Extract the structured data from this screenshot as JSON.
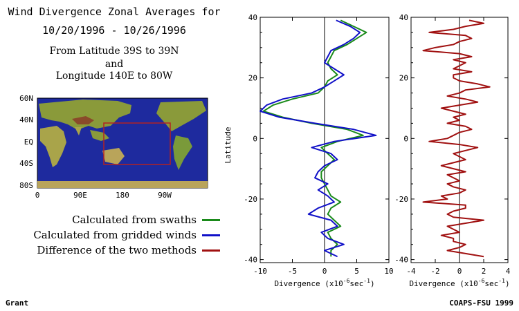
{
  "header": {
    "title_line1": "Wind Divergence Zonal Averages for",
    "title_line2": "10/20/1996 - 10/26/1996",
    "region_line1": "From Latitude 39S to 39N",
    "region_line2": "and",
    "region_line3": "Longitude 140E to 80W"
  },
  "map": {
    "lat_labels": [
      "60N",
      "40N",
      "EQ",
      "40S",
      "80S"
    ],
    "lon_labels": [
      "0",
      "90E",
      "180",
      "90W"
    ],
    "ocean_color": "#1e2a9e",
    "box_color": "#b22222"
  },
  "legend": {
    "items": [
      {
        "label": "Calculated from swaths",
        "color": "#1a8a1a"
      },
      {
        "label": "Calculated from gridded winds",
        "color": "#1010c8"
      },
      {
        "label": "Difference of the two methods",
        "color": "#a01010"
      }
    ]
  },
  "footer": {
    "left": "Grant",
    "right": "COAPS-FSU 1999"
  },
  "chart_data": [
    {
      "type": "line",
      "ylabel": "Latitude",
      "xlabel_main": "Divergence (x10",
      "xlabel_exp1": "-6",
      "xlabel_mid": "sec",
      "xlabel_exp2": "-1",
      "xlabel_end": ")",
      "xlim": [
        -10,
        10
      ],
      "ylim": [
        -41,
        40
      ],
      "xticks": [
        "-10",
        "-5",
        "0",
        "5",
        "10"
      ],
      "yticks": [
        "-40",
        "-20",
        "0",
        "20",
        "40"
      ],
      "y": [
        39,
        37,
        35,
        33,
        31,
        29,
        27,
        25,
        23,
        21,
        19,
        17,
        15,
        13,
        11,
        9,
        7,
        5,
        3,
        1,
        -1,
        -3,
        -5,
        -7,
        -9,
        -11,
        -13,
        -15,
        -17,
        -19,
        -21,
        -23,
        -25,
        -27,
        -29,
        -31,
        -33,
        -35,
        -37,
        -39
      ],
      "series": [
        {
          "name": "Calculated from swaths",
          "color": "#1a8a1a",
          "values": [
            2.5,
            4.5,
            6.5,
            5.0,
            3.5,
            1.5,
            1.0,
            0.5,
            1.0,
            2.0,
            0.5,
            0.0,
            -1.0,
            -5.0,
            -8.0,
            -9.5,
            -6.5,
            -2.0,
            3.5,
            6.0,
            2.0,
            -0.5,
            0.5,
            1.5,
            0.5,
            -0.5,
            -0.5,
            0.0,
            0.5,
            1.0,
            2.5,
            1.0,
            0.5,
            1.5,
            2.5,
            0.5,
            1.0,
            2.0,
            1.0,
            1.0
          ]
        },
        {
          "name": "Calculated from gridded winds",
          "color": "#1010c8",
          "values": [
            1.8,
            4.0,
            5.5,
            4.5,
            3.0,
            1.0,
            0.5,
            0.0,
            1.5,
            3.0,
            1.5,
            0.0,
            -2.0,
            -6.5,
            -9.0,
            -10.0,
            -7.0,
            -1.5,
            4.5,
            8.0,
            1.5,
            -2.0,
            1.0,
            2.0,
            0.0,
            -1.0,
            -1.5,
            0.5,
            -1.0,
            0.5,
            1.5,
            -1.0,
            -2.5,
            1.0,
            2.0,
            -0.5,
            0.5,
            3.0,
            0.0,
            2.0
          ]
        }
      ]
    },
    {
      "type": "line",
      "xlabel_main": "Divergence (x10",
      "xlabel_exp1": "-6",
      "xlabel_mid": "sec",
      "xlabel_exp2": "-1",
      "xlabel_end": ")",
      "xlim": [
        -4,
        4
      ],
      "ylim": [
        -41,
        40
      ],
      "xticks": [
        "-4",
        "-2",
        "0",
        "2",
        "4"
      ],
      "yticks": [
        "-40",
        "-20",
        "0",
        "20",
        "40"
      ],
      "y": [
        39,
        38,
        37,
        36,
        35,
        34,
        33,
        32,
        31,
        30,
        29,
        28,
        27,
        26,
        25,
        24,
        23,
        22,
        21,
        20,
        19,
        18,
        17,
        16,
        15,
        14,
        13,
        12,
        11,
        10,
        9,
        8,
        7,
        6,
        5,
        4,
        3,
        2,
        1,
        0,
        -1,
        -2,
        -3,
        -4,
        -5,
        -6,
        -7,
        -8,
        -9,
        -10,
        -11,
        -12,
        -13,
        -14,
        -15,
        -16,
        -17,
        -18,
        -19,
        -20,
        -21,
        -22,
        -23,
        -24,
        -25,
        -26,
        -27,
        -28,
        -29,
        -30,
        -31,
        -32,
        -33,
        -34,
        -35,
        -36,
        -37,
        -38,
        -39
      ],
      "series": [
        {
          "color": "#a01010",
          "values": [
            0.8,
            2.0,
            0.5,
            -0.5,
            -2.5,
            0.5,
            1.0,
            0.0,
            -0.5,
            -2.0,
            -3.0,
            0.0,
            1.0,
            -0.5,
            0.5,
            0.0,
            -0.5,
            1.0,
            -0.5,
            -0.5,
            0.0,
            1.5,
            2.5,
            0.5,
            0.0,
            -1.0,
            0.5,
            1.5,
            0.0,
            -1.5,
            -0.5,
            0.5,
            -0.5,
            0.0,
            -1.0,
            0.5,
            1.0,
            0.0,
            -0.5,
            -1.0,
            -2.5,
            0.0,
            1.5,
            0.5,
            -0.5,
            0.0,
            0.5,
            -0.5,
            -1.5,
            -0.5,
            0.5,
            -1.0,
            -0.5,
            0.0,
            -1.0,
            -0.5,
            0.5,
            0.0,
            -1.5,
            -1.0,
            -3.0,
            0.5,
            0.5,
            -0.5,
            -1.0,
            -0.5,
            2.0,
            0.5,
            -1.0,
            -0.5,
            0.0,
            -1.5,
            -0.5,
            -0.5,
            0.5,
            0.0,
            -1.0,
            0.5,
            2.0
          ]
        }
      ]
    }
  ]
}
